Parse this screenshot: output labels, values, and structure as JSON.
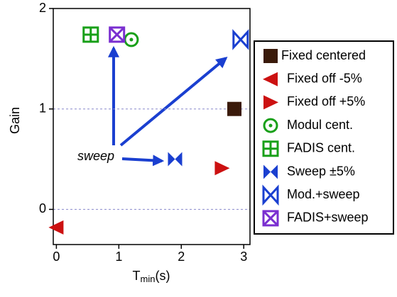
{
  "chart_data": {
    "type": "scatter",
    "xlabel": [
      "T",
      "min",
      "(s)"
    ],
    "ylabel": "Gain",
    "xlim": [
      -0.05,
      3.1
    ],
    "ylim": [
      -0.35,
      2
    ],
    "xticks": [
      0,
      1,
      2,
      3
    ],
    "yticks": [
      0,
      1,
      2
    ],
    "grid": true,
    "annotation": "sweep",
    "series": [
      {
        "name": "Fixed centered",
        "color": "#3a1a0a",
        "marker": "square",
        "x": [
          2.85
        ],
        "values": [
          1.0
        ]
      },
      {
        "name": "Fixed off -5%",
        "color": "#cc1111",
        "marker": "tri-left",
        "x": [
          0
        ],
        "values": [
          -0.18
        ]
      },
      {
        "name": "Fixed off +5%",
        "color": "#cc1111",
        "marker": "tri-right",
        "x": [
          2.65
        ],
        "values": [
          0.41
        ]
      },
      {
        "name": "Modul cent.",
        "color": "#19a019",
        "marker": "circle-dot",
        "x": [
          1.2
        ],
        "values": [
          1.69
        ]
      },
      {
        "name": "FADIS cent.",
        "color": "#19a019",
        "marker": "square-plus",
        "x": [
          0.55
        ],
        "values": [
          1.74
        ]
      },
      {
        "name": "Sweep ±5%",
        "color": "#1a3fd0",
        "marker": "bowtie",
        "x": [
          1.9
        ],
        "values": [
          0.5
        ]
      },
      {
        "name": "Mod.+sweep",
        "color": "#1a3fd0",
        "marker": "bowtie-open",
        "x": [
          2.95
        ],
        "values": [
          1.69
        ]
      },
      {
        "name": "FADIS+sweep",
        "color": "#7a2fd0",
        "marker": "square-x",
        "x": [
          0.97
        ],
        "values": [
          1.74
        ]
      }
    ]
  }
}
